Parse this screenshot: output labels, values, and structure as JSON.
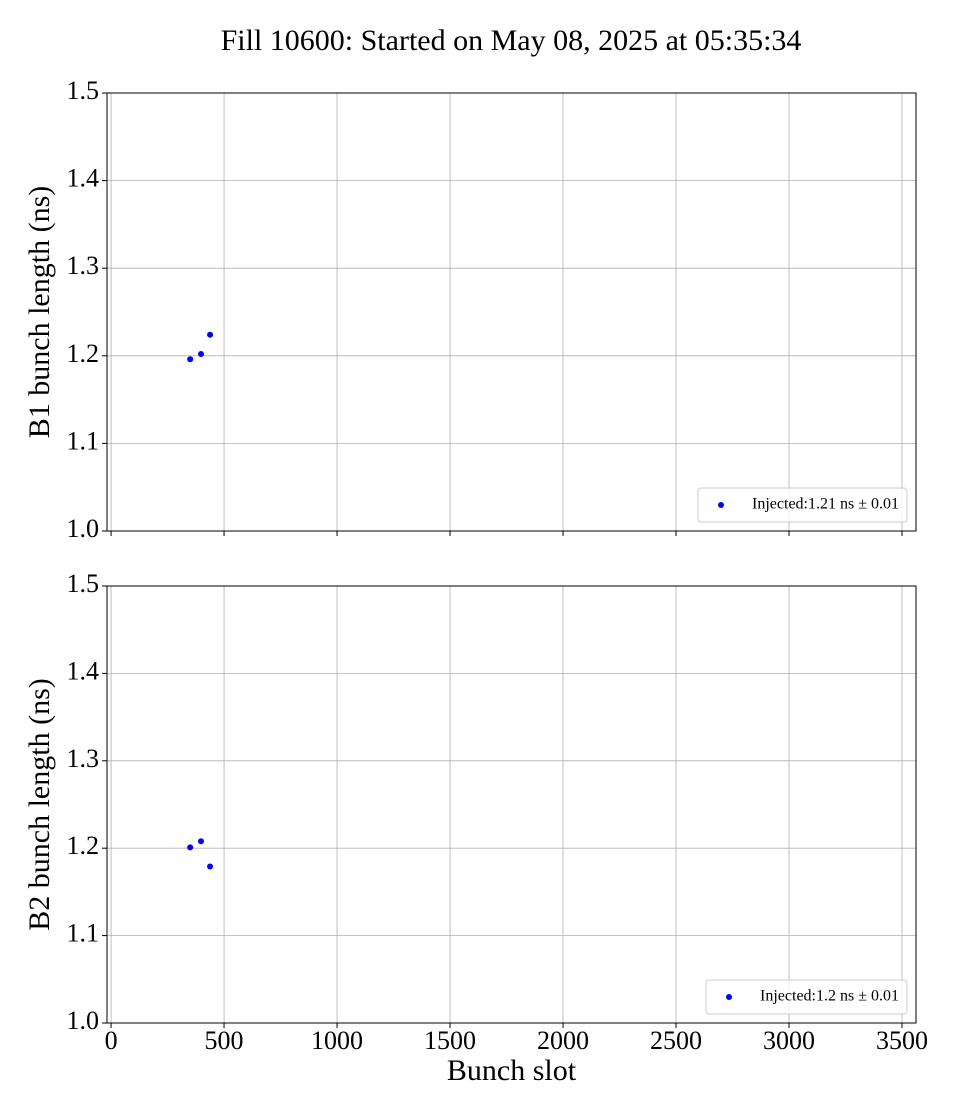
{
  "title": "Fill 10600: Started on May 08, 2025 at 05:35:34",
  "chart_data": [
    {
      "type": "scatter",
      "ylabel": "B1 bunch length (ns)",
      "series": [
        {
          "name": "Injected:1.21 ns ± 0.01",
          "color": "#0000ff",
          "x": [
            350,
            398,
            438
          ],
          "values": [
            1.196,
            1.202,
            1.224
          ]
        }
      ],
      "xlim": [
        -18,
        3562
      ],
      "xticks": [
        0,
        500,
        1000,
        1500,
        2000,
        2500,
        3000,
        3500
      ],
      "ylim": [
        1.0,
        1.5
      ],
      "yticks": [
        {
          "value": 1,
          "label": "1.0"
        },
        1.1,
        1.2,
        1.3,
        1.4,
        1.5
      ],
      "grid": true,
      "legend": "lower right"
    },
    {
      "type": "scatter",
      "ylabel": "B2 bunch length (ns)",
      "xlabel": "Bunch slot",
      "series": [
        {
          "name": "Injected:1.2 ns ± 0.01",
          "color": "#0000ff",
          "x": [
            350,
            398,
            438
          ],
          "values": [
            1.201,
            1.208,
            1.179
          ]
        }
      ],
      "xlim": [
        -18,
        3562
      ],
      "xticks": [
        0,
        500,
        1000,
        1500,
        2000,
        2500,
        3000,
        3500
      ],
      "ylim": [
        1.0,
        1.5
      ],
      "yticks": [
        {
          "value": 1,
          "label": "1.0"
        },
        1.1,
        1.2,
        1.3,
        1.4,
        1.5
      ],
      "grid": true,
      "legend": "lower right"
    }
  ]
}
